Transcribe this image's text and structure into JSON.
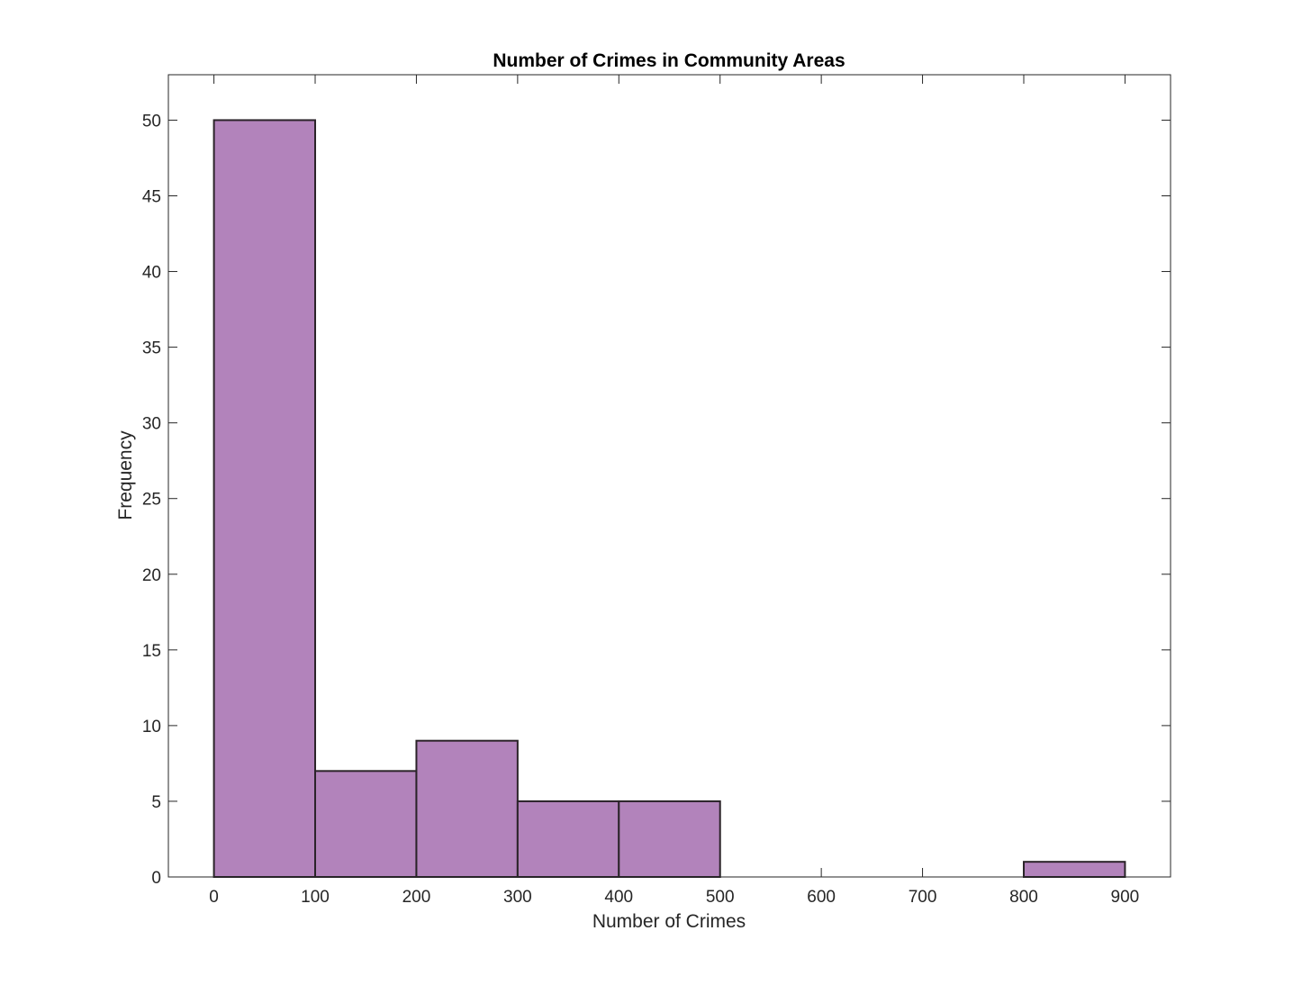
{
  "chart_data": {
    "type": "bar",
    "subtype": "histogram",
    "title": "Number of Crimes in Community Areas",
    "xlabel": "Number of Crimes",
    "ylabel": "Frequency",
    "bin_edges": [
      0,
      100,
      200,
      300,
      400,
      500,
      600,
      700,
      800,
      900
    ],
    "values": [
      50,
      7,
      9,
      5,
      5,
      0,
      0,
      0,
      1
    ],
    "xlim": [
      -45,
      945
    ],
    "ylim": [
      0,
      53
    ],
    "xticks": [
      0,
      100,
      200,
      300,
      400,
      500,
      600,
      700,
      800,
      900
    ],
    "yticks": [
      0,
      5,
      10,
      15,
      20,
      25,
      30,
      35,
      40,
      45,
      50
    ],
    "grid": false,
    "legend": "none",
    "colors": {
      "bar_fill": "#b283bb",
      "bar_edge": "#2b2329",
      "axes": "#262626",
      "background": "#ffffff"
    }
  }
}
